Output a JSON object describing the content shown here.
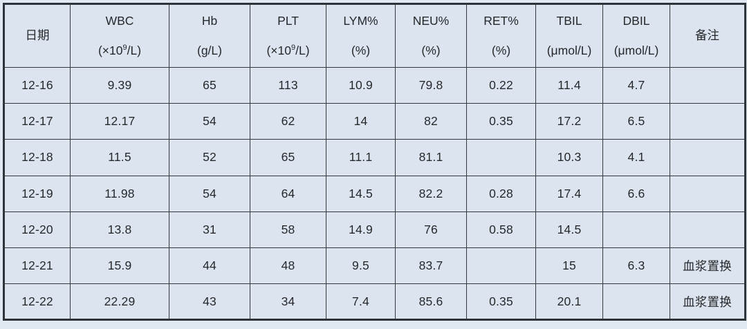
{
  "page": {
    "background_color": "#e0e8f2",
    "cell_background_color": "#dce4ef",
    "grid_color": "#33383d",
    "text_color": "#26282b"
  },
  "table": {
    "columns": [
      {
        "key": "date",
        "title": "日期",
        "unit_pre": "",
        "unit_sup": "",
        "unit_post": ""
      },
      {
        "key": "wbc",
        "title": "WBC",
        "unit_pre": "(×10",
        "unit_sup": "9",
        "unit_post": "/L)"
      },
      {
        "key": "hb",
        "title": "Hb",
        "unit_pre": "(g/L)",
        "unit_sup": "",
        "unit_post": ""
      },
      {
        "key": "plt",
        "title": "PLT",
        "unit_pre": "(×10",
        "unit_sup": "9",
        "unit_post": "/L)"
      },
      {
        "key": "lym",
        "title": "LYM%",
        "unit_pre": "(%)",
        "unit_sup": "",
        "unit_post": ""
      },
      {
        "key": "neu",
        "title": "NEU%",
        "unit_pre": "(%)",
        "unit_sup": "",
        "unit_post": ""
      },
      {
        "key": "ret",
        "title": "RET%",
        "unit_pre": "(%)",
        "unit_sup": "",
        "unit_post": ""
      },
      {
        "key": "tbil",
        "title": "TBIL",
        "unit_pre": "(μmol/L)",
        "unit_sup": "",
        "unit_post": ""
      },
      {
        "key": "dbil",
        "title": "DBIL",
        "unit_pre": "(μmol/L)",
        "unit_sup": "",
        "unit_post": ""
      },
      {
        "key": "remark",
        "title": "备注",
        "unit_pre": "",
        "unit_sup": "",
        "unit_post": ""
      }
    ],
    "rows": [
      {
        "date": "12-16",
        "wbc": "9.39",
        "hb": "65",
        "plt": "113",
        "lym": "10.9",
        "neu": "79.8",
        "ret": "0.22",
        "tbil": "11.4",
        "dbil": "4.7",
        "remark": ""
      },
      {
        "date": "12-17",
        "wbc": "12.17",
        "hb": "54",
        "plt": "62",
        "lym": "14",
        "neu": "82",
        "ret": "0.35",
        "tbil": "17.2",
        "dbil": "6.5",
        "remark": ""
      },
      {
        "date": "12-18",
        "wbc": "11.5",
        "hb": "52",
        "plt": "65",
        "lym": "11.1",
        "neu": "81.1",
        "ret": "",
        "tbil": "10.3",
        "dbil": "4.1",
        "remark": ""
      },
      {
        "date": "12-19",
        "wbc": "11.98",
        "hb": "54",
        "plt": "64",
        "lym": "14.5",
        "neu": "82.2",
        "ret": "0.28",
        "tbil": "17.4",
        "dbil": "6.6",
        "remark": ""
      },
      {
        "date": "12-20",
        "wbc": "13.8",
        "hb": "31",
        "plt": "58",
        "lym": "14.9",
        "neu": "76",
        "ret": "0.58",
        "tbil": "14.5",
        "dbil": "",
        "remark": ""
      },
      {
        "date": "12-21",
        "wbc": "15.9",
        "hb": "44",
        "plt": "48",
        "lym": "9.5",
        "neu": "83.7",
        "ret": "",
        "tbil": "15",
        "dbil": "6.3",
        "remark": "血浆置换"
      },
      {
        "date": "12-22",
        "wbc": "22.29",
        "hb": "43",
        "plt": "34",
        "lym": "7.4",
        "neu": "85.6",
        "ret": "0.35",
        "tbil": "20.1",
        "dbil": "",
        "remark": "血浆置换"
      }
    ]
  }
}
